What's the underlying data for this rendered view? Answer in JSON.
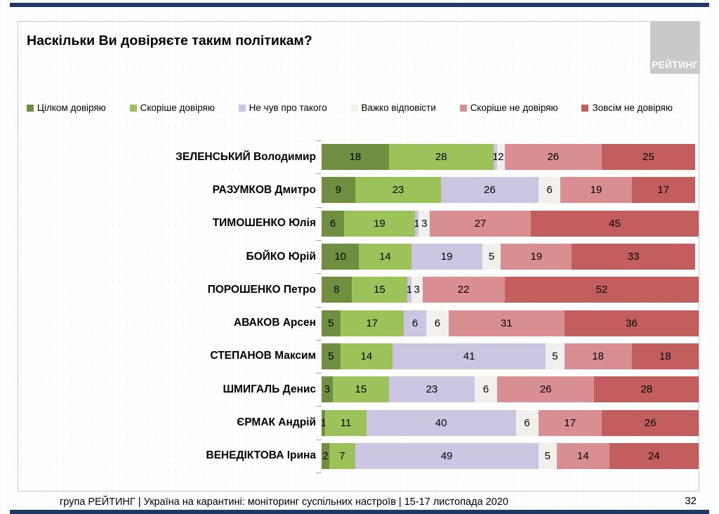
{
  "slide": {
    "title": "Наскільки Ви довіряєте таким політикам?",
    "logo_text": "РЕЙТИНГ",
    "footer_text": "група РЕЙТИНГ | Україна на карантині: моніторинг суспільних настроїв | 15-17 листопада 2020",
    "page_number": "32"
  },
  "colors": {
    "accent_bar": "#1F3864",
    "content_border": "#C8C8C8",
    "logo_bg": "#C9C9C9",
    "tick": "#A6A6A6"
  },
  "chart_data": {
    "type": "bar",
    "orientation": "horizontal",
    "stacked": true,
    "units": "%",
    "title": "Наскільки Ви довіряєте таким політикам?",
    "legend_position": "top",
    "grid": false,
    "xlim": [
      0,
      101
    ],
    "value_labels": "inside-center",
    "series": [
      {
        "name": "Цілком довіряю",
        "color": "#6F8E3F"
      },
      {
        "name": "Скоріше довіряю",
        "color": "#9CC359"
      },
      {
        "name": "Не чув про такого",
        "color": "#CDC6E2"
      },
      {
        "name": "Важко відповісти",
        "color": "#F1F0EC"
      },
      {
        "name": "Скоріше не довіряю",
        "color": "#D98F92"
      },
      {
        "name": "Зовсім не довіряю",
        "color": "#C25E5E"
      }
    ],
    "categories": [
      "ЗЕЛЕНСЬКИЙ Володимир",
      "РАЗУМКОВ Дмитро",
      "ТИМОШЕНКО Юлія",
      "БОЙКО Юрій",
      "ПОРОШЕНКО Петро",
      "АВАКОВ Арсен",
      "СТЕПАНОВ Максим",
      "ШМИГАЛЬ Денис",
      "ЄРМАК Андрій",
      "ВЕНЕДІКТОВА Ірина"
    ],
    "values": [
      [
        18,
        28,
        1,
        2,
        26,
        25
      ],
      [
        9,
        23,
        26,
        6,
        19,
        17
      ],
      [
        6,
        19,
        1,
        3,
        27,
        45
      ],
      [
        10,
        14,
        19,
        5,
        19,
        33
      ],
      [
        8,
        15,
        1,
        3,
        22,
        52
      ],
      [
        5,
        17,
        6,
        6,
        31,
        36
      ],
      [
        5,
        14,
        41,
        5,
        18,
        18
      ],
      [
        3,
        15,
        23,
        6,
        26,
        28
      ],
      [
        1,
        11,
        40,
        6,
        17,
        26
      ],
      [
        2,
        7,
        49,
        5,
        14,
        24
      ]
    ]
  }
}
